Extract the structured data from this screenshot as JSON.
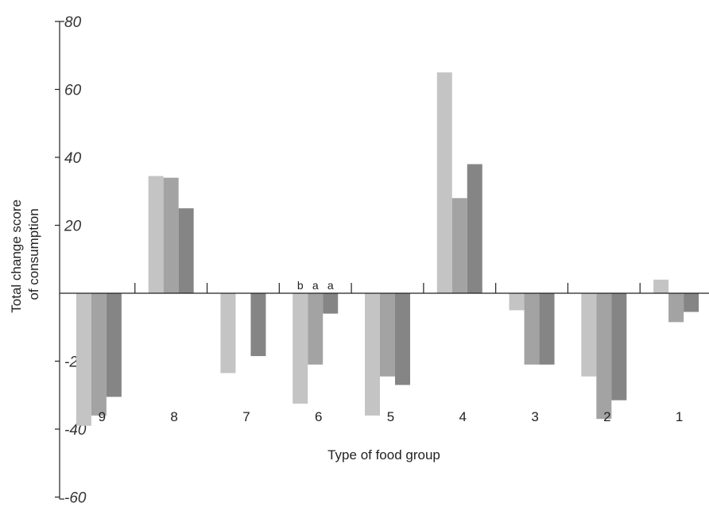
{
  "chart_data": {
    "type": "bar",
    "title": "",
    "xlabel": "Type of food group",
    "ylabel_lines": [
      "Total change score",
      "of consumption"
    ],
    "categories": [
      "9",
      "8",
      "7",
      "6",
      "5",
      "4",
      "3",
      "2",
      "1"
    ],
    "series": [
      {
        "color": "#c4c4c4",
        "values": [
          -39,
          34.5,
          -23.5,
          -32.5,
          -36,
          65,
          -5,
          -24.5,
          4
        ]
      },
      {
        "color": "#a3a3a3",
        "values": [
          -36,
          34,
          0,
          -21,
          -24.5,
          28,
          -21,
          -37,
          -8.5
        ]
      },
      {
        "color": "#858585",
        "values": [
          -30.5,
          25,
          -18.5,
          -6,
          -27,
          38,
          -21,
          -31.5,
          -5.5
        ]
      }
    ],
    "yticks": [
      80,
      60,
      40,
      20,
      -20,
      -40,
      -60
    ],
    "ylim": [
      -64,
      83
    ],
    "annotations": [
      {
        "category": "6",
        "labels": [
          "b",
          "a",
          "a"
        ]
      }
    ]
  }
}
